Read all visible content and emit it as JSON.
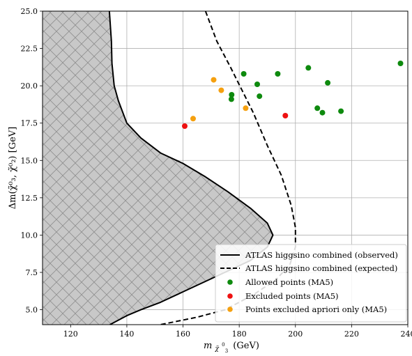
{
  "chart_data": {
    "type": "scatter",
    "xlabel_main": "m",
    "xlabel_sub": "χ̃",
    "xlabel_sub_sup": "0",
    "xlabel_sub_sub": "3",
    "xlabel_unit": "(GeV)",
    "ylabel": "Δm(χ̃⁰₃, χ̃⁰₂) [GeV]",
    "xlim": [
      110,
      240
    ],
    "ylim": [
      4.0,
      25.0
    ],
    "x_ticks": [
      "120",
      "140",
      "160",
      "180",
      "200",
      "220",
      "240"
    ],
    "y_ticks": [
      "5.0",
      "7.5",
      "10.0",
      "12.5",
      "15.0",
      "17.5",
      "20.0",
      "22.5",
      "25.0"
    ],
    "grid": true,
    "legend_position": "lower-right",
    "colors": {
      "allowed": "#0e8a0e",
      "excluded": "#ee1111",
      "apriori": "#f5a00f",
      "excluded_region_fill": "#c8c8c8",
      "hatch": "#8f8f8f"
    },
    "observed_contour": {
      "name": "ATLAS higgsino combined (observed)",
      "points": [
        [
          133.8,
          25.0
        ],
        [
          134.5,
          23.0
        ],
        [
          134.7,
          21.5
        ],
        [
          135.5,
          20.0
        ],
        [
          137.0,
          19.0
        ],
        [
          140.0,
          17.5
        ],
        [
          145.0,
          16.5
        ],
        [
          152.0,
          15.5
        ],
        [
          160.0,
          14.8
        ],
        [
          168.0,
          13.9
        ],
        [
          176.0,
          12.9
        ],
        [
          184.0,
          11.8
        ],
        [
          190.0,
          10.8
        ],
        [
          192.0,
          10.0
        ],
        [
          190.0,
          9.2
        ],
        [
          184.0,
          8.3
        ],
        [
          176.0,
          7.6
        ],
        [
          168.0,
          6.9
        ],
        [
          160.0,
          6.2
        ],
        [
          152.0,
          5.5
        ],
        [
          145.0,
          5.0
        ],
        [
          140.0,
          4.6
        ],
        [
          134.0,
          4.0
        ]
      ]
    },
    "expected_contour": {
      "name": "ATLAS higgsino combined (expected)",
      "points": [
        [
          168.0,
          25.0
        ],
        [
          172.0,
          23.0
        ],
        [
          177.0,
          21.2
        ],
        [
          181.0,
          19.7
        ],
        [
          185.0,
          18.2
        ],
        [
          190.0,
          16.0
        ],
        [
          195.0,
          14.0
        ],
        [
          198.5,
          12.0
        ],
        [
          200.0,
          10.5
        ],
        [
          200.0,
          9.2
        ],
        [
          198.0,
          8.0
        ],
        [
          193.0,
          7.0
        ],
        [
          185.0,
          6.0
        ],
        [
          175.0,
          5.0
        ],
        [
          165.0,
          4.5
        ],
        [
          152.0,
          4.0
        ]
      ]
    },
    "series": [
      {
        "name": "Allowed points (MA5)",
        "color": "#0e8a0e",
        "points": [
          [
            177.3,
            19.4
          ],
          [
            177.2,
            19.1
          ],
          [
            181.6,
            20.8
          ],
          [
            186.4,
            20.1
          ],
          [
            187.2,
            19.3
          ],
          [
            193.7,
            20.8
          ],
          [
            204.6,
            21.2
          ],
          [
            207.8,
            18.5
          ],
          [
            209.6,
            18.2
          ],
          [
            211.5,
            20.2
          ],
          [
            216.2,
            18.3
          ],
          [
            237.4,
            21.5
          ]
        ]
      },
      {
        "name": "Excluded points (MA5)",
        "color": "#ee1111",
        "points": [
          [
            160.6,
            17.3
          ],
          [
            196.4,
            18.0
          ]
        ]
      },
      {
        "name": "Points excluded apriori only (MA5)",
        "color": "#f5a00f",
        "points": [
          [
            163.6,
            17.8
          ],
          [
            170.9,
            20.4
          ],
          [
            173.6,
            19.7
          ],
          [
            182.3,
            18.5
          ]
        ]
      }
    ],
    "legend": [
      {
        "label": "ATLAS higgsino combined (observed)",
        "style": "solid-line"
      },
      {
        "label": "ATLAS higgsino combined (expected)",
        "style": "dashed-line"
      },
      {
        "label": "Allowed points (MA5)",
        "style": "dot",
        "color": "#0e8a0e"
      },
      {
        "label": "Excluded points (MA5)",
        "style": "dot",
        "color": "#ee1111"
      },
      {
        "label": "Points excluded apriori only (MA5)",
        "style": "dot",
        "color": "#f5a00f"
      }
    ]
  }
}
